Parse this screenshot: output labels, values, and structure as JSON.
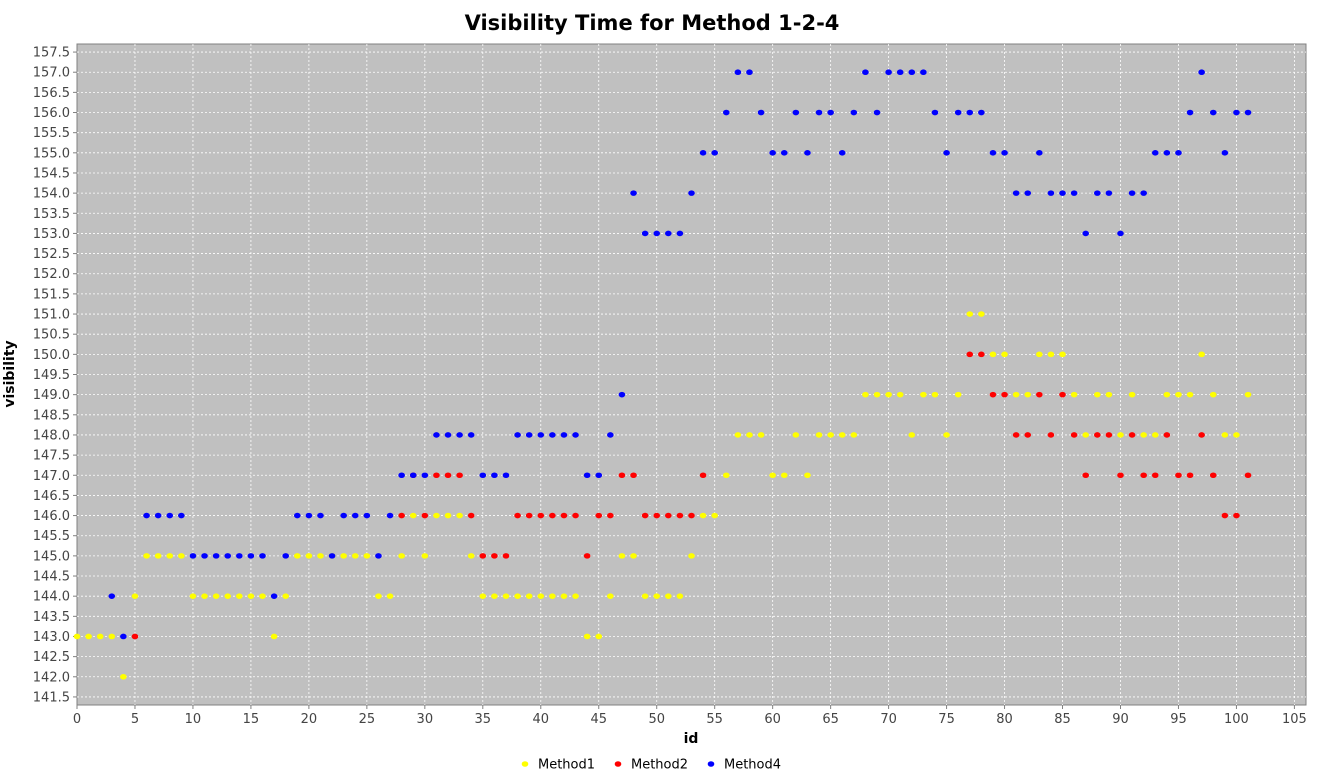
{
  "chart_data": {
    "type": "scatter",
    "title": "Visibility Time for Method 1-2-4",
    "xlabel": "id",
    "ylabel": "visibility",
    "xlim": [
      0,
      106
    ],
    "ylim": [
      141.3,
      157.7
    ],
    "x_ticks": [
      0,
      5,
      10,
      15,
      20,
      25,
      30,
      35,
      40,
      45,
      50,
      55,
      60,
      65,
      70,
      75,
      80,
      85,
      90,
      95,
      100,
      105
    ],
    "y_ticks": [
      141.5,
      142.0,
      142.5,
      143.0,
      143.5,
      144.0,
      144.5,
      145.0,
      145.5,
      146.0,
      146.5,
      147.0,
      147.5,
      148.0,
      148.5,
      149.0,
      149.5,
      150.0,
      150.5,
      151.0,
      151.5,
      152.0,
      152.5,
      153.0,
      153.5,
      154.0,
      154.5,
      155.0,
      155.5,
      156.0,
      156.5,
      157.0,
      157.5
    ],
    "grid": true,
    "legend": "bottom",
    "plot_background": "#c0c0c0",
    "series": [
      {
        "name": "Method1",
        "color": "#ffff00",
        "x": [
          0,
          1,
          2,
          3,
          4,
          5,
          6,
          7,
          8,
          9,
          10,
          11,
          12,
          13,
          14,
          15,
          16,
          17,
          18,
          19,
          20,
          21,
          22,
          23,
          24,
          25,
          26,
          27,
          28,
          29,
          30,
          31,
          32,
          33,
          34,
          35,
          36,
          37,
          38,
          39,
          40,
          41,
          42,
          43,
          44,
          45,
          46,
          47,
          48,
          49,
          50,
          51,
          52,
          53,
          54,
          55,
          56,
          57,
          58,
          59,
          60,
          61,
          62,
          63,
          64,
          65,
          66,
          67,
          68,
          69,
          70,
          71,
          72,
          73,
          74,
          75,
          76,
          77,
          78,
          79,
          80,
          81,
          82,
          83,
          84,
          85,
          86,
          87,
          88,
          89,
          90,
          91,
          92,
          93,
          94,
          95,
          96,
          97,
          98,
          99,
          100,
          101
        ],
        "y": [
          143,
          143,
          143,
          143,
          142,
          144,
          145,
          145,
          145,
          145,
          144,
          144,
          144,
          144,
          144,
          144,
          144,
          143,
          144,
          145,
          145,
          145,
          145,
          145,
          145,
          145,
          144,
          144,
          145,
          146,
          145,
          146,
          146,
          146,
          145,
          144,
          144,
          144,
          144,
          144,
          144,
          144,
          144,
          144,
          143,
          143,
          144,
          145,
          145,
          144,
          144,
          144,
          144,
          145,
          146,
          146,
          147,
          148,
          148,
          148,
          147,
          147,
          148,
          147,
          148,
          148,
          148,
          148,
          149,
          149,
          149,
          149,
          148,
          149,
          149,
          148,
          149,
          151,
          151,
          150,
          150,
          149,
          149,
          150,
          150,
          150,
          149,
          148,
          149,
          149,
          148,
          149,
          148,
          148,
          149,
          149,
          149,
          150,
          149,
          148,
          148,
          149
        ]
      },
      {
        "name": "Method2",
        "color": "#ff0000",
        "x": [
          5,
          28,
          29,
          30,
          31,
          32,
          33,
          34,
          35,
          36,
          37,
          38,
          39,
          40,
          41,
          42,
          43,
          44,
          45,
          46,
          47,
          48,
          49,
          50,
          51,
          52,
          53,
          54,
          77,
          78,
          79,
          80,
          81,
          82,
          83,
          84,
          85,
          86,
          87,
          88,
          89,
          90,
          91,
          92,
          93,
          94,
          95,
          96,
          97,
          98,
          99,
          100,
          101
        ],
        "y": [
          143,
          146,
          147,
          146,
          147,
          147,
          147,
          146,
          145,
          145,
          145,
          146,
          146,
          146,
          146,
          146,
          146,
          145,
          146,
          146,
          147,
          147,
          146,
          146,
          146,
          146,
          146,
          147,
          150,
          150,
          149,
          149,
          148,
          148,
          149,
          148,
          149,
          148,
          147,
          148,
          148,
          147,
          148,
          147,
          147,
          148,
          147,
          147,
          148,
          147,
          146,
          146,
          147
        ]
      },
      {
        "name": "Method4",
        "color": "#0000ff",
        "x": [
          3,
          4,
          6,
          7,
          8,
          9,
          10,
          11,
          12,
          13,
          14,
          15,
          16,
          17,
          18,
          19,
          20,
          21,
          22,
          23,
          24,
          25,
          26,
          27,
          28,
          29,
          30,
          31,
          32,
          33,
          34,
          35,
          36,
          37,
          38,
          39,
          40,
          41,
          42,
          43,
          44,
          45,
          46,
          47,
          48,
          49,
          50,
          51,
          52,
          53,
          54,
          55,
          56,
          57,
          58,
          59,
          60,
          61,
          62,
          63,
          64,
          65,
          66,
          67,
          68,
          69,
          70,
          71,
          72,
          73,
          74,
          75,
          76,
          77,
          78,
          79,
          80,
          81,
          82,
          83,
          84,
          85,
          86,
          87,
          88,
          89,
          90,
          91,
          92,
          93,
          94,
          95,
          96,
          97,
          98,
          99,
          100,
          101
        ],
        "y": [
          144,
          143,
          146,
          146,
          146,
          146,
          145,
          145,
          145,
          145,
          145,
          145,
          145,
          144,
          145,
          146,
          146,
          146,
          145,
          146,
          146,
          146,
          145,
          146,
          147,
          147,
          147,
          148,
          148,
          148,
          148,
          147,
          147,
          147,
          148,
          148,
          148,
          148,
          148,
          148,
          147,
          147,
          148,
          149,
          154,
          153,
          153,
          153,
          153,
          154,
          155,
          155,
          156,
          157,
          157,
          156,
          155,
          155,
          156,
          155,
          156,
          156,
          155,
          156,
          157,
          156,
          157,
          157,
          157,
          157,
          156,
          155,
          156,
          156,
          156,
          155,
          155,
          154,
          154,
          155,
          154,
          154,
          154,
          153,
          154,
          154,
          153,
          154,
          154,
          155,
          155,
          155,
          156,
          157,
          156,
          155,
          156,
          156
        ]
      }
    ]
  }
}
